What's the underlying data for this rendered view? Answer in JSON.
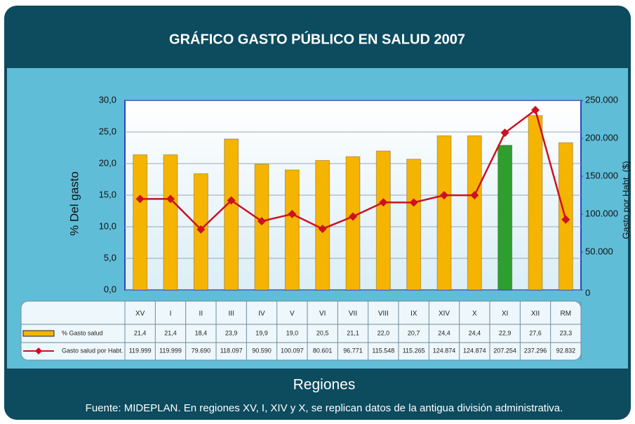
{
  "chart_data": {
    "type": "bar",
    "title": "GRÁFICO GASTO PÚBLICO EN SALUD 2007",
    "xlabel": "Regiones",
    "ylabel": "% Del gasto",
    "y2label": "Gasto por Habt. ($)",
    "source": "Fuente: MIDEPLAN. En regiones XV, I, XIV y X, se replican datos de la antigua división administrativa.",
    "categories": [
      "XV",
      "I",
      "II",
      "III",
      "IV",
      "V",
      "VI",
      "VII",
      "VIII",
      "IX",
      "XIV",
      "X",
      "XI",
      "XII",
      "RM"
    ],
    "series": [
      {
        "name": "% Gasto salud",
        "type": "bar",
        "color": "#f5b400",
        "colors": [
          "#f5b400",
          "#f5b400",
          "#f5b400",
          "#f5b400",
          "#f5b400",
          "#f5b400",
          "#f5b400",
          "#f5b400",
          "#f5b400",
          "#f5b400",
          "#f5b400",
          "#f5b400",
          "#2e9e2e",
          "#f5b400",
          "#f5b400"
        ],
        "values": [
          21.4,
          21.4,
          18.4,
          23.9,
          19.9,
          19.0,
          20.5,
          21.1,
          22.0,
          20.7,
          24.4,
          24.4,
          22.9,
          27.6,
          23.3
        ],
        "value_labels": [
          "21,4",
          "21,4",
          "18,4",
          "23,9",
          "19,9",
          "19,0",
          "20,5",
          "21,1",
          "22,0",
          "20,7",
          "24,4",
          "24,4",
          "22,9",
          "27,6",
          "23,3"
        ]
      },
      {
        "name": "Gasto salud por Habt.",
        "type": "line",
        "color": "#cc1122",
        "axis": "y2",
        "values": [
          119999,
          119999,
          79690,
          118097,
          90590,
          100097,
          80601,
          96771,
          115548,
          115265,
          124874,
          124874,
          207254,
          237296,
          92832
        ],
        "value_labels": [
          "119.999",
          "119.999",
          "79.690",
          "118.097",
          "90.590",
          "100.097",
          "80.601",
          "96.771",
          "115.548",
          "115.265",
          "124.874",
          "124.874",
          "207.254",
          "237.296",
          "92.832"
        ]
      }
    ],
    "ylim": [
      0,
      30
    ],
    "yticks": [
      {
        "value": 0,
        "label": "0,0"
      },
      {
        "value": 5,
        "label": "5,0"
      },
      {
        "value": 10,
        "label": "10,0"
      },
      {
        "value": 15,
        "label": "15,0"
      },
      {
        "value": 20,
        "label": "20,0"
      },
      {
        "value": 25,
        "label": "25,0"
      },
      {
        "value": 30,
        "label": "30,0"
      }
    ],
    "y2lim": [
      0,
      250000
    ],
    "y2ticks": [
      0,
      {
        "value": 50000,
        "label": "50.000"
      },
      {
        "value": 100000,
        "label": "100.000"
      },
      {
        "value": 150000,
        "label": "150.000"
      },
      {
        "value": 200000,
        "label": "200.000"
      },
      {
        "value": 250000,
        "label": "250.000"
      }
    ],
    "grid": true
  }
}
